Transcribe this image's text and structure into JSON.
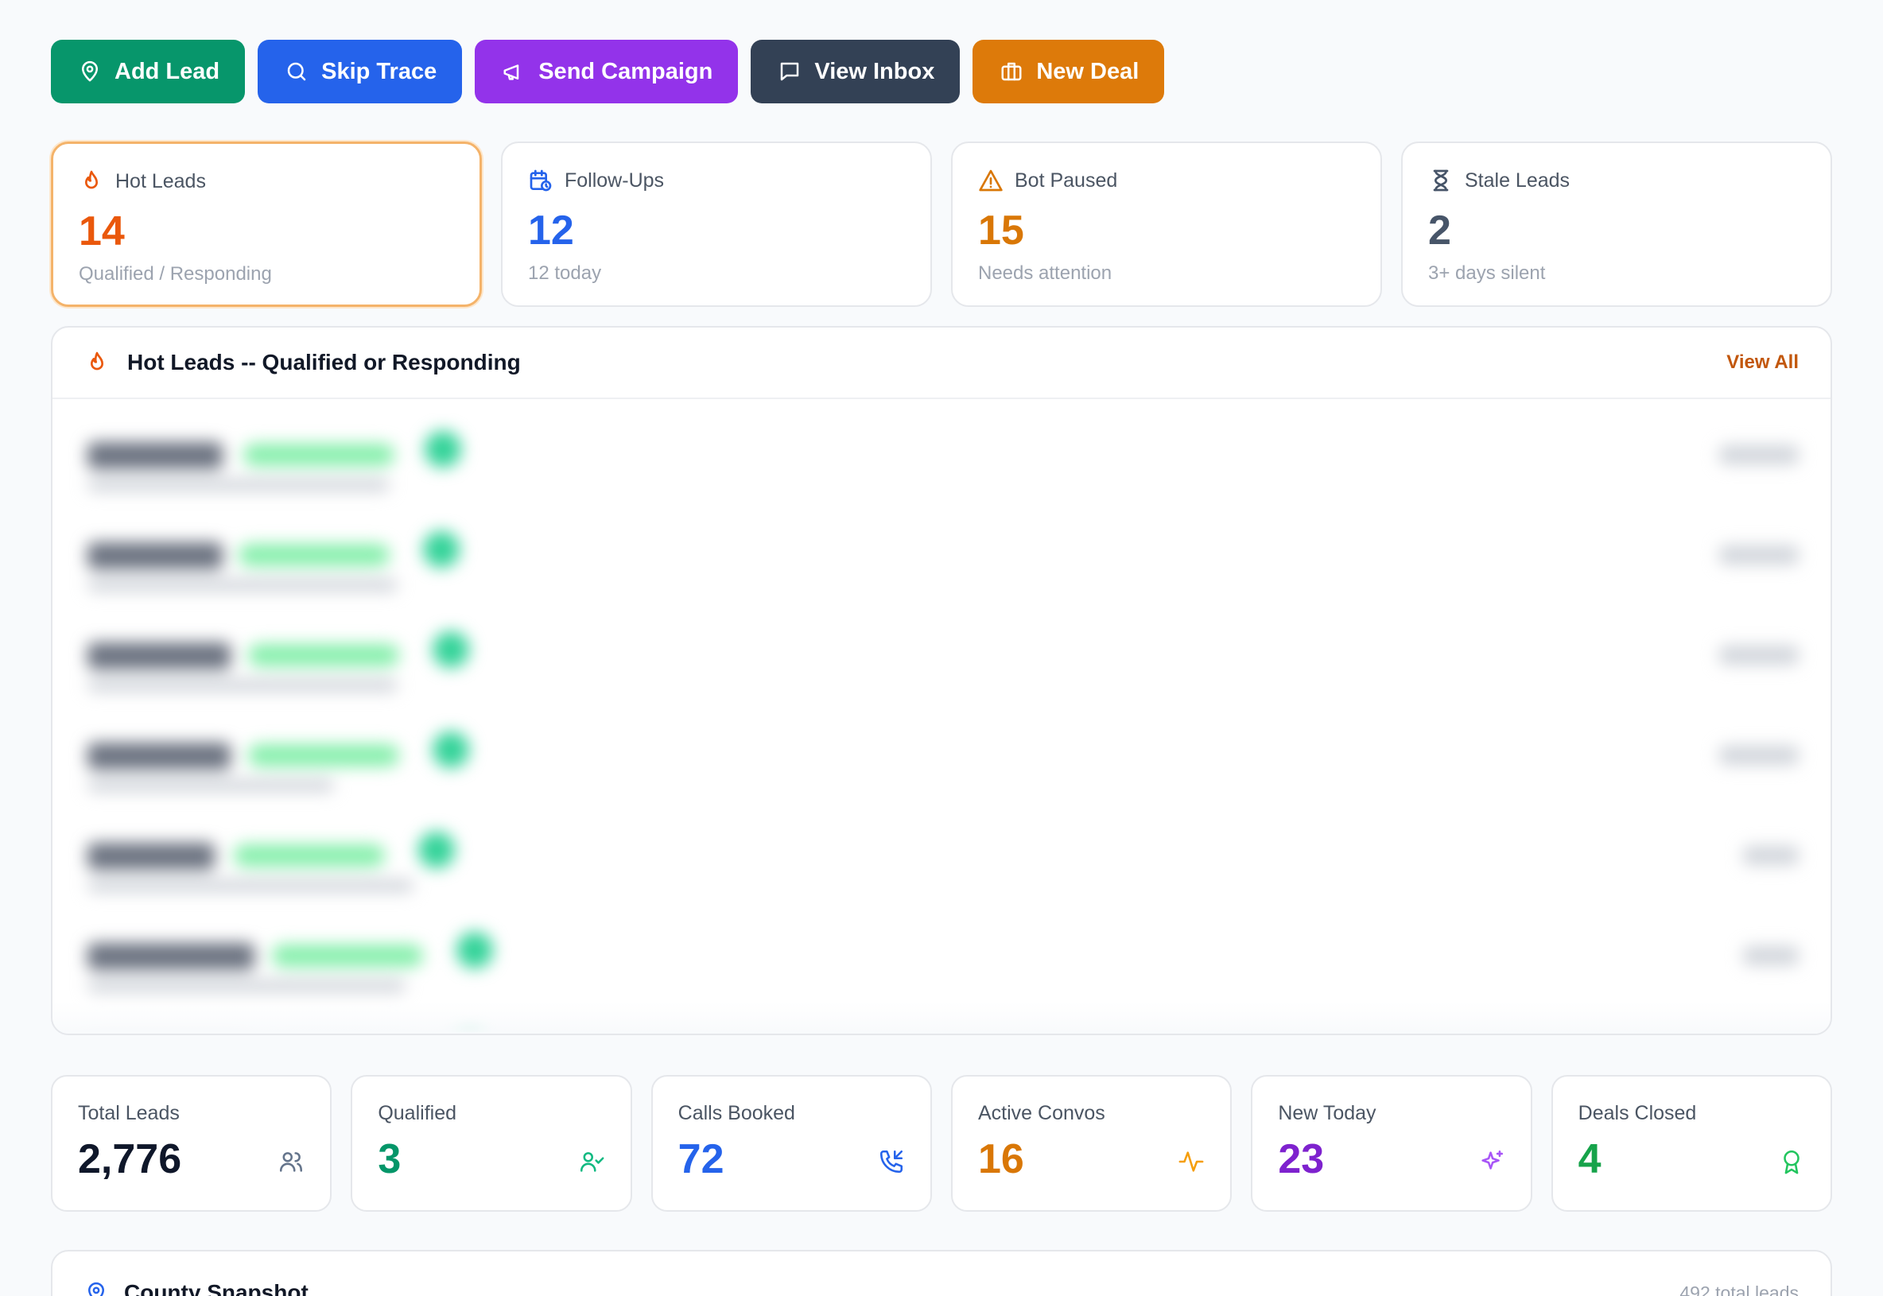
{
  "actions": {
    "add_lead": "Add Lead",
    "skip_trace": "Skip Trace",
    "send_campaign": "Send Campaign",
    "view_inbox": "View Inbox",
    "new_deal": "New Deal"
  },
  "alerts": [
    {
      "title": "Hot Leads",
      "value": "14",
      "sub": "Qualified / Responding",
      "icon": "flame-icon",
      "color": "#ea580c"
    },
    {
      "title": "Follow-Ups",
      "value": "12",
      "sub": "12 today",
      "icon": "calendar-clock-icon",
      "color": "#2563eb"
    },
    {
      "title": "Bot Paused",
      "value": "15",
      "sub": "Needs attention",
      "icon": "warning-icon",
      "color": "#d97706"
    },
    {
      "title": "Stale Leads",
      "value": "2",
      "sub": "3+ days silent",
      "icon": "hourglass-icon",
      "color": "#475569"
    }
  ],
  "hot_leads": {
    "title": "Hot Leads -- Qualified or Responding",
    "view_all": "View All"
  },
  "stats": [
    {
      "label": "Total Leads",
      "value": "2,776",
      "icon": "users-icon",
      "color": "#0f172a"
    },
    {
      "label": "Qualified",
      "value": "3",
      "icon": "user-check-icon",
      "color": "#059669"
    },
    {
      "label": "Calls Booked",
      "value": "72",
      "icon": "phone-incoming-icon",
      "color": "#2563eb"
    },
    {
      "label": "Active Convos",
      "value": "16",
      "icon": "activity-icon",
      "color": "#d97706"
    },
    {
      "label": "New Today",
      "value": "23",
      "icon": "sparkles-icon",
      "color": "#7e22ce"
    },
    {
      "label": "Deals Closed",
      "value": "4",
      "icon": "award-icon",
      "color": "#16a34a"
    }
  ],
  "county": {
    "title": "County Snapshot",
    "meta": "492 total leads"
  }
}
